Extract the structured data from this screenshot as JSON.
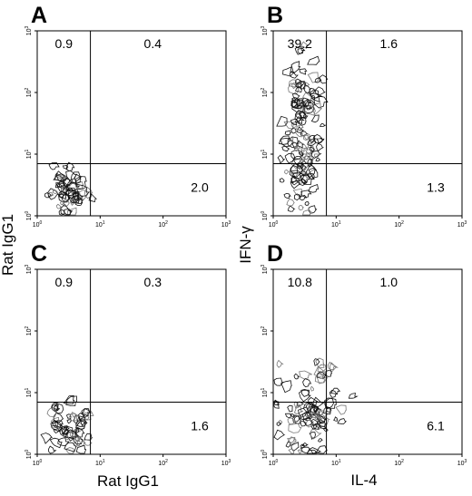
{
  "figure": {
    "y_title_left": "Rat IgG1",
    "x_title_left": "Rat IgG1",
    "y_title_right": "IFN-γ",
    "x_title_right": "IL-4",
    "tick_base": "10",
    "tick_exponents": [
      "0",
      "1",
      "2",
      "3"
    ]
  },
  "chart_data": [
    {
      "type": "contour",
      "panel": "A",
      "xlabel": "Rat IgG1",
      "ylabel": "Rat IgG1",
      "xlim": [
        1,
        1000
      ],
      "ylim": [
        1,
        1000
      ],
      "scale": "log",
      "gate": {
        "x": 7,
        "y": 7
      },
      "quadrants": {
        "upper_left": "0.9",
        "upper_right": "0.4",
        "lower_right": "2.0"
      },
      "population": {
        "center": [
          3,
          2.5
        ],
        "spread_x": 2.1,
        "spread_y": 2.4,
        "intensity": "low"
      }
    },
    {
      "type": "contour",
      "panel": "B",
      "xlabel": "IL-4",
      "ylabel": "IFN-γ",
      "xlim": [
        1,
        1000
      ],
      "ylim": [
        1,
        1000
      ],
      "scale": "log",
      "gate": {
        "x": 7,
        "y": 7
      },
      "quadrants": {
        "upper_left": "39.2",
        "upper_right": "1.6",
        "lower_right": "1.3"
      },
      "population": {
        "center": [
          3,
          25
        ],
        "spread_x": 2.1,
        "spread_y": 20,
        "intensity": "high"
      }
    },
    {
      "type": "contour",
      "panel": "C",
      "xlabel": "Rat IgG1",
      "ylabel": "Rat IgG1",
      "xlim": [
        1,
        1000
      ],
      "ylim": [
        1,
        1000
      ],
      "scale": "log",
      "gate": {
        "x": 7,
        "y": 7
      },
      "quadrants": {
        "upper_left": "0.9",
        "upper_right": "0.3",
        "lower_right": "1.6"
      },
      "population": {
        "center": [
          3,
          2.5
        ],
        "spread_x": 2.1,
        "spread_y": 2.4,
        "intensity": "low"
      }
    },
    {
      "type": "contour",
      "panel": "D",
      "xlabel": "IL-4",
      "ylabel": "IFN-γ",
      "xlim": [
        1,
        1000
      ],
      "ylim": [
        1,
        1000
      ],
      "scale": "log",
      "gate": {
        "x": 7,
        "y": 7
      },
      "quadrants": {
        "upper_left": "10.8",
        "upper_right": "1.0",
        "lower_right": "6.1"
      },
      "population": {
        "center": [
          4,
          6
        ],
        "spread_x": 3.5,
        "spread_y": 6,
        "intensity": "medium"
      }
    }
  ]
}
